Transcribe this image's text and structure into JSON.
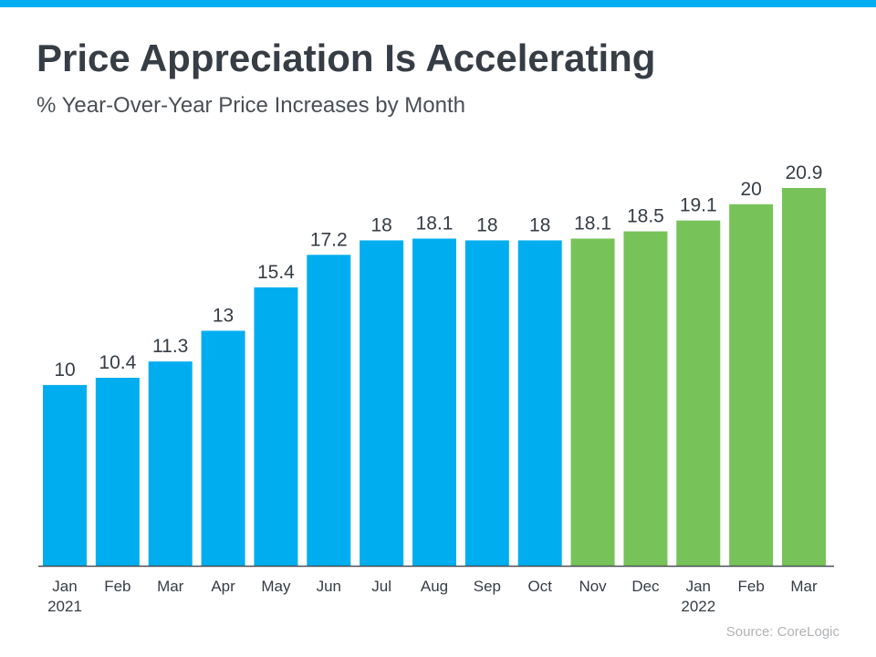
{
  "header": {
    "title": "Price Appreciation Is Accelerating",
    "subtitle": "% Year-Over-Year Price Increases by Month"
  },
  "footer": {
    "source": "Source: CoreLogic"
  },
  "colors": {
    "top_bar": "#00aeef",
    "bar_blue": "#00aeef",
    "bar_green": "#77c35a",
    "axis": "#4a4f55",
    "text": "#363d45"
  },
  "chart_data": {
    "type": "bar",
    "title": "Price Appreciation Is Accelerating",
    "subtitle": "% Year-Over-Year Price Increases by Month",
    "xlabel": "",
    "ylabel": "",
    "grid": false,
    "categories": [
      "Jan",
      "Feb",
      "Mar",
      "Apr",
      "May",
      "Jun",
      "Jul",
      "Aug",
      "Sep",
      "Oct",
      "Nov",
      "Dec",
      "Jan",
      "Feb",
      "Mar"
    ],
    "year_labels": [
      "2021",
      "",
      "",
      "",
      "",
      "",
      "",
      "",
      "",
      "",
      "",
      "",
      "2022",
      "",
      ""
    ],
    "values": [
      10,
      10.4,
      11.3,
      13,
      15.4,
      17.2,
      18,
      18.1,
      18,
      18,
      18.1,
      18.5,
      19.1,
      20,
      20.9
    ],
    "value_labels": [
      "10",
      "10.4",
      "11.3",
      "13",
      "15.4",
      "17.2",
      "18",
      "18.1",
      "18",
      "18",
      "18.1",
      "18.5",
      "19.1",
      "20",
      "20.9"
    ],
    "bar_colors": [
      "#00aeef",
      "#00aeef",
      "#00aeef",
      "#00aeef",
      "#00aeef",
      "#00aeef",
      "#00aeef",
      "#00aeef",
      "#00aeef",
      "#00aeef",
      "#77c35a",
      "#77c35a",
      "#77c35a",
      "#77c35a",
      "#77c35a"
    ],
    "ylim": [
      0,
      20.9
    ]
  }
}
